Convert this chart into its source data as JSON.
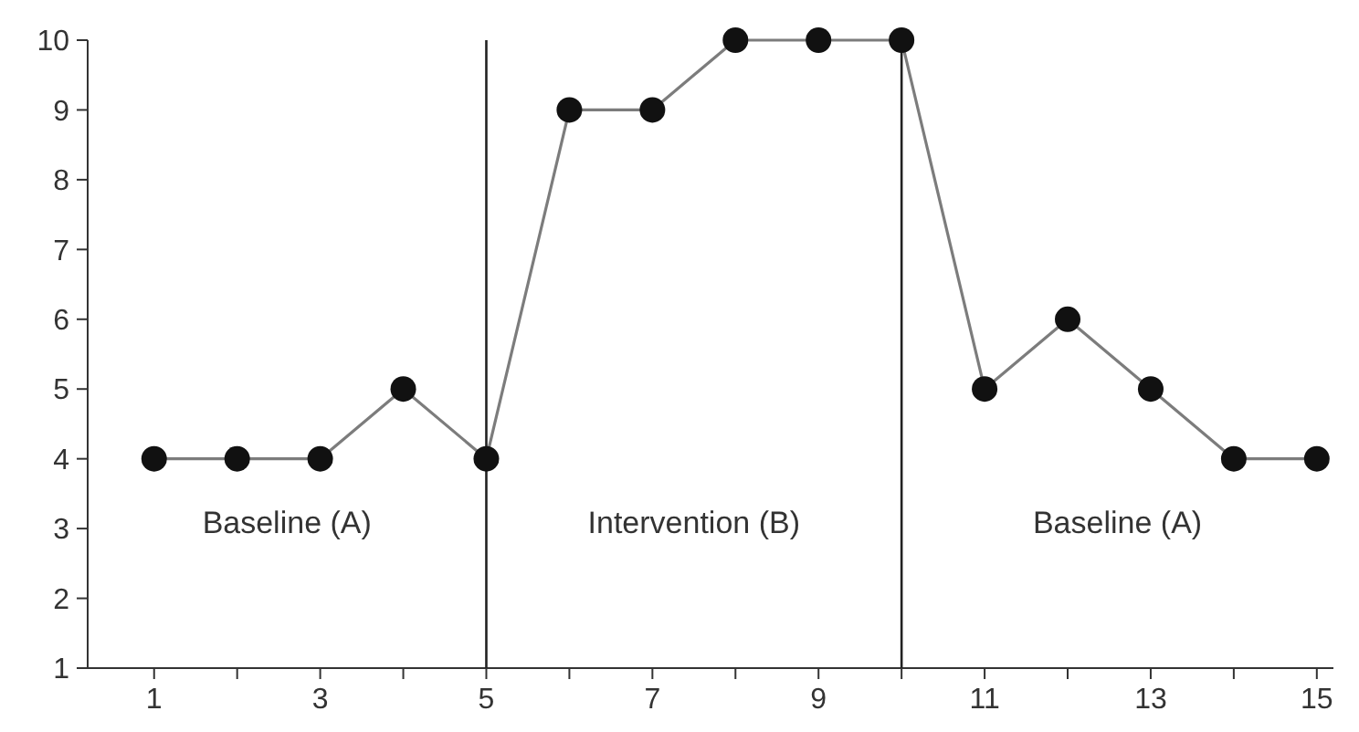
{
  "chart_data": {
    "type": "line",
    "x": [
      1,
      2,
      3,
      4,
      5,
      6,
      7,
      8,
      9,
      10,
      11,
      12,
      13,
      14,
      15
    ],
    "series": [
      {
        "color": "#111111",
        "values": [
          4,
          4,
          4,
          5,
          4,
          9,
          9,
          10,
          10,
          10,
          5,
          6,
          5,
          4,
          4
        ]
      }
    ],
    "xlim": [
      0.2,
      15.2
    ],
    "ylim": [
      1,
      10
    ],
    "xticks": [
      1,
      {
        "value": 2,
        "label": null
      },
      3,
      {
        "value": 4,
        "label": null
      },
      5,
      {
        "value": 6,
        "label": null
      },
      7,
      {
        "value": 8,
        "label": null
      },
      9,
      {
        "value": 10,
        "label": null
      },
      11,
      {
        "value": 12,
        "label": null
      },
      13,
      {
        "value": 14,
        "label": null
      },
      15
    ],
    "yticks": [
      1,
      2,
      3,
      4,
      5,
      6,
      7,
      8,
      9,
      10
    ],
    "ref_lines": [
      {
        "axis": "x",
        "value": 5
      },
      {
        "axis": "x",
        "value": 10
      }
    ],
    "annotations": [
      "Baseline (A)",
      "Intervention (B)",
      "Baseline (A)"
    ],
    "marker": "circle",
    "line_style": "solid",
    "grid": false
  }
}
